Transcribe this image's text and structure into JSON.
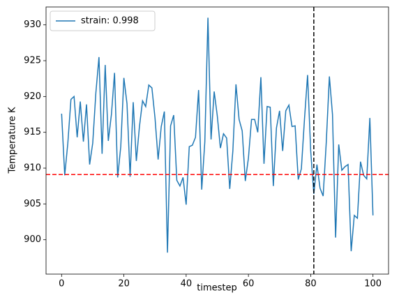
{
  "chart_data": {
    "type": "line",
    "xlabel": "timestep",
    "ylabel": "Temperature K",
    "x": [
      0,
      1,
      2,
      3,
      4,
      5,
      6,
      7,
      8,
      9,
      10,
      11,
      12,
      13,
      14,
      15,
      16,
      17,
      18,
      19,
      20,
      21,
      22,
      23,
      24,
      25,
      26,
      27,
      28,
      29,
      30,
      31,
      32,
      33,
      34,
      35,
      36,
      37,
      38,
      39,
      40,
      41,
      42,
      43,
      44,
      45,
      46,
      47,
      48,
      49,
      50,
      51,
      52,
      53,
      54,
      55,
      56,
      57,
      58,
      59,
      60,
      61,
      62,
      63,
      64,
      65,
      66,
      67,
      68,
      69,
      70,
      71,
      72,
      73,
      74,
      75,
      76,
      77,
      78,
      79,
      80,
      81,
      82,
      83,
      84,
      85,
      86,
      87,
      88,
      89,
      90,
      91,
      92,
      93,
      94,
      95,
      96,
      97,
      98,
      99,
      100
    ],
    "series": [
      {
        "name": "strain: 0.998",
        "color": "#1f77b4",
        "values": [
          917.6,
          909,
          913.5,
          919.6,
          920,
          914.3,
          919.3,
          913.7,
          918.9,
          910.5,
          913.5,
          920.5,
          925.5,
          912,
          924.4,
          913.8,
          917.5,
          923.3,
          908.7,
          913,
          922.6,
          919,
          908.8,
          919.2,
          911,
          915.8,
          919.4,
          918.6,
          921.6,
          921.2,
          917,
          911.2,
          915.8,
          917.9,
          898.2,
          915.9,
          917.4,
          908.3,
          907.5,
          908.7,
          904.9,
          913,
          913.2,
          914.3,
          920.9,
          907,
          913.7,
          931,
          914,
          920.7,
          917.3,
          912.8,
          914.8,
          914.2,
          907.1,
          912.4,
          921.7,
          916.8,
          915.2,
          908.2,
          911.4,
          916.8,
          916.8,
          915,
          922.7,
          910.6,
          918.6,
          918.5,
          907.5,
          915.6,
          918,
          912.4,
          918,
          918.8,
          915.8,
          915.9,
          908.4,
          909.9,
          916.8,
          923,
          912.4,
          906.4,
          910.5,
          907.2,
          906.1,
          913.6,
          922.8,
          917.5,
          900.3,
          913.3,
          909.7,
          910.2,
          910.5,
          898.4,
          903.4,
          903,
          910.9,
          909,
          908.5,
          917,
          903.4
        ]
      }
    ],
    "hline": {
      "y": 909.1,
      "color": "#ff0000"
    },
    "vline": {
      "x": 81,
      "color": "#000000"
    },
    "xlim": [
      -5,
      105
    ],
    "xticks": [
      0,
      20,
      40,
      60,
      80,
      100
    ],
    "ylim": [
      895.2,
      932.5
    ],
    "yticks": [
      900,
      905,
      910,
      915,
      920,
      925,
      930
    ],
    "legend": "upper left"
  }
}
